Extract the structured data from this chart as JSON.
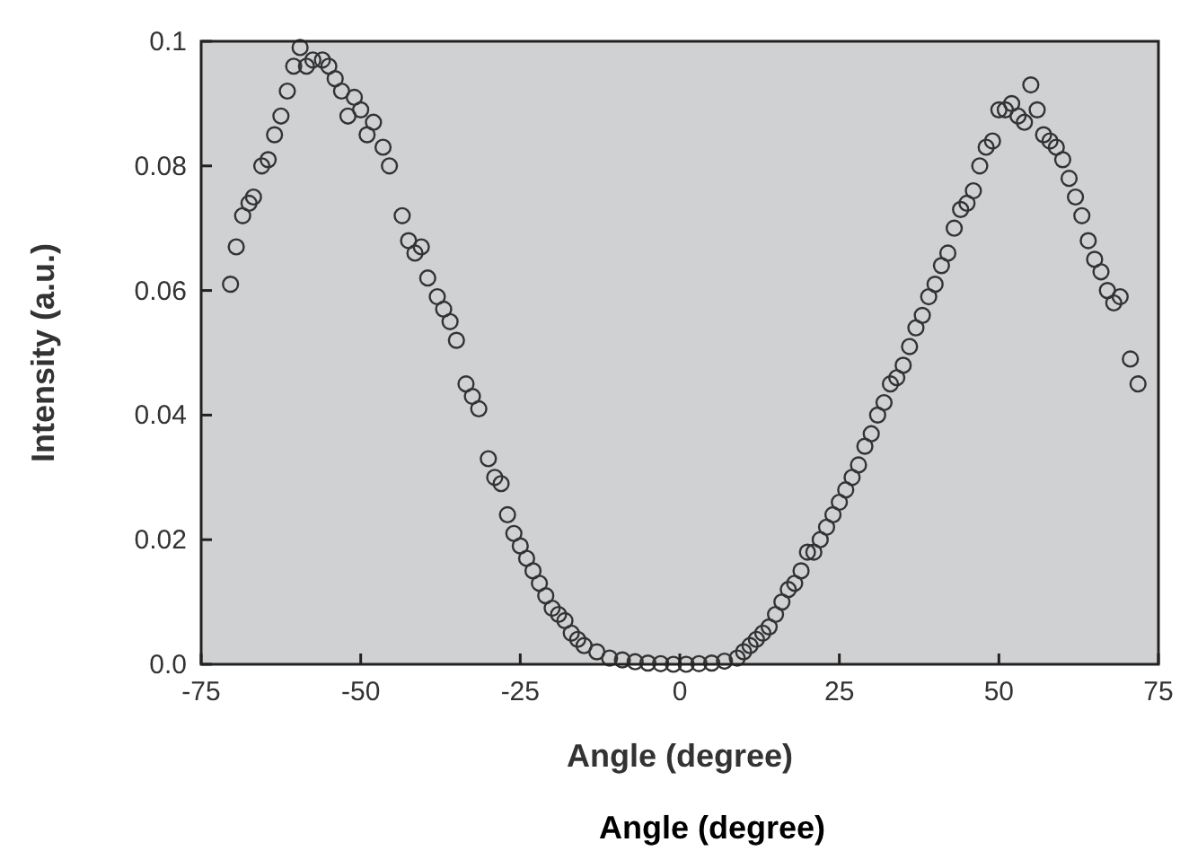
{
  "chart_data": {
    "type": "scatter",
    "xlabel": "Angle (degree)",
    "ylabel": "Intensity (a.u.)",
    "annotations": [
      "Angle (degree)"
    ],
    "xlim": [
      -75,
      75
    ],
    "xticks": [
      -75,
      -50,
      -25,
      0,
      25,
      50,
      75
    ],
    "ylim": [
      0,
      0.1
    ],
    "yticks": [
      {
        "value": 0,
        "label": "0.0"
      },
      0.02,
      0.04,
      0.06,
      0.08,
      0.1
    ],
    "marker": "circle",
    "grid": false,
    "series": [
      {
        "color": "#333333",
        "x": [
          -70.4,
          -69.5,
          -68.5,
          -67.5,
          -66.8,
          -65.5,
          -64.5,
          -63.5,
          -62.5,
          -61.5,
          -60.5,
          -59.5,
          -58.5,
          -57.5,
          -56,
          -55,
          -54,
          -53,
          -52,
          -51,
          -50,
          -49,
          -48,
          -46.5,
          -45.5,
          -43.5,
          -42.5,
          -41.5,
          -40.5,
          -39.5,
          -38,
          -37,
          -36,
          -35,
          -33.5,
          -32.5,
          -31.5,
          -30,
          -29,
          -28,
          -27,
          -26,
          -25,
          -24,
          -23,
          -22,
          -21,
          -20,
          -19,
          -18,
          -17,
          -16,
          -15,
          -13,
          -11,
          -9,
          -7,
          -5,
          -3,
          -1,
          1,
          3,
          5,
          7,
          9,
          10,
          11,
          12,
          13,
          14,
          15,
          16,
          17,
          18,
          19,
          20,
          21,
          22,
          23,
          24,
          25,
          26,
          27,
          28,
          29,
          30,
          31,
          32,
          33,
          34,
          35,
          36,
          37,
          38,
          39,
          40,
          41,
          42,
          43,
          44,
          45,
          46,
          47,
          48,
          49,
          50,
          51,
          52,
          53,
          54,
          55,
          56,
          57,
          58,
          59,
          60,
          61,
          62,
          63,
          64,
          65,
          66,
          67,
          68,
          69,
          70.6,
          71.8
        ],
        "values": [
          0.061,
          0.067,
          0.072,
          0.074,
          0.075,
          0.08,
          0.081,
          0.085,
          0.088,
          0.092,
          0.096,
          0.099,
          0.096,
          0.097,
          0.097,
          0.096,
          0.094,
          0.092,
          0.088,
          0.091,
          0.089,
          0.085,
          0.087,
          0.083,
          0.08,
          0.072,
          0.068,
          0.066,
          0.067,
          0.062,
          0.059,
          0.057,
          0.055,
          0.052,
          0.045,
          0.043,
          0.041,
          0.033,
          0.03,
          0.029,
          0.024,
          0.021,
          0.019,
          0.017,
          0.015,
          0.013,
          0.011,
          0.009,
          0.008,
          0.007,
          0.005,
          0.004,
          0.003,
          0.002,
          0.001,
          0.0007,
          0.0004,
          0.0002,
          0.0001,
          0,
          0,
          0.0001,
          0.0002,
          0.0005,
          0.001,
          0.002,
          0.003,
          0.004,
          0.005,
          0.006,
          0.008,
          0.01,
          0.012,
          0.013,
          0.015,
          0.018,
          0.018,
          0.02,
          0.022,
          0.024,
          0.026,
          0.028,
          0.03,
          0.032,
          0.035,
          0.037,
          0.04,
          0.042,
          0.045,
          0.046,
          0.048,
          0.051,
          0.054,
          0.056,
          0.059,
          0.061,
          0.064,
          0.066,
          0.07,
          0.073,
          0.074,
          0.076,
          0.08,
          0.083,
          0.084,
          0.089,
          0.089,
          0.09,
          0.088,
          0.087,
          0.093,
          0.089,
          0.085,
          0.084,
          0.083,
          0.081,
          0.078,
          0.075,
          0.072,
          0.068,
          0.065,
          0.063,
          0.06,
          0.058,
          0.059,
          0.049,
          0.045
        ]
      }
    ]
  }
}
